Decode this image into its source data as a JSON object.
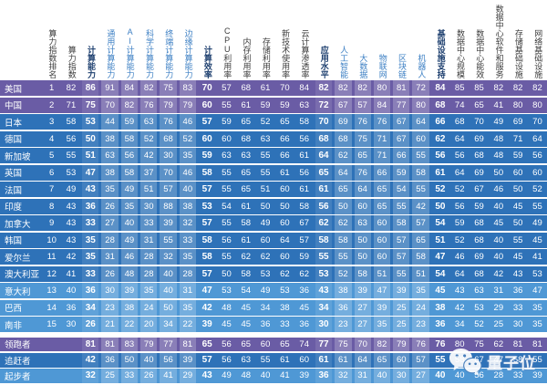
{
  "colors": {
    "leader_row": "#6a5ca5",
    "chaser_row": "#2e72b8",
    "starter_row": "#4f98d5",
    "header_lead": "#1c3e6e",
    "header_sub": "#3e80c4",
    "header_plain": "#3c3c3c",
    "value_text": "#ffffff"
  },
  "watermark": {
    "brand": "量子位",
    "icon": "wechat-icon"
  },
  "chart_data": {
    "type": "table",
    "title": "",
    "legend_position": "none",
    "columns": [
      {
        "label": "算力指数排名",
        "style": "plain",
        "stripe": "none"
      },
      {
        "label": "算力指数",
        "style": "plain",
        "stripe": "none"
      },
      {
        "label": "计算能力",
        "style": "lead",
        "stripe": "mid"
      },
      {
        "label": "通用计算能力",
        "style": "sub",
        "stripe": "light"
      },
      {
        "label": "AI计算能力",
        "style": "sub",
        "stripe": "light"
      },
      {
        "label": "科学计算能力",
        "style": "sub",
        "stripe": "light"
      },
      {
        "label": "终端计算能力",
        "style": "sub",
        "stripe": "light"
      },
      {
        "label": "边缘计算能力",
        "style": "sub",
        "stripe": "light"
      },
      {
        "label": "计算效率",
        "style": "lead",
        "stripe": "none"
      },
      {
        "label": "CPU利用率",
        "style": "plain",
        "stripe": "none"
      },
      {
        "label": "内存利用率",
        "style": "plain",
        "stripe": "none"
      },
      {
        "label": "存储利用率",
        "style": "plain",
        "stripe": "none"
      },
      {
        "label": "新技术使用率",
        "style": "plain",
        "stripe": "none"
      },
      {
        "label": "云计算渗透率",
        "style": "plain",
        "stripe": "none"
      },
      {
        "label": "应用水平",
        "style": "lead",
        "stripe": "mid"
      },
      {
        "label": "人工智能",
        "style": "sub",
        "stripe": "light"
      },
      {
        "label": "大数据",
        "style": "sub",
        "stripe": "light"
      },
      {
        "label": "物联网",
        "style": "sub",
        "stripe": "light"
      },
      {
        "label": "区块链",
        "style": "sub",
        "stripe": "light"
      },
      {
        "label": "机器人",
        "style": "sub",
        "stripe": "light"
      },
      {
        "label": "基础设施支持",
        "style": "lead",
        "stripe": "none"
      },
      {
        "label": "数据中心规模",
        "style": "plain",
        "stripe": "none"
      },
      {
        "label": "数据中心能效",
        "style": "plain",
        "stripe": "none"
      },
      {
        "label": "数据中心软件和服务",
        "style": "plain",
        "stripe": "none"
      },
      {
        "label": "存储基础设施",
        "style": "plain",
        "stripe": "none"
      },
      {
        "label": "网络基础设施",
        "style": "plain",
        "stripe": "none"
      }
    ],
    "rows": [
      {
        "name": "美国",
        "tier": "leader",
        "values": [
          1,
          82,
          86,
          91,
          84,
          82,
          75,
          83,
          70,
          57,
          68,
          61,
          70,
          84,
          82,
          82,
          82,
          80,
          81,
          72,
          84,
          85,
          85,
          82,
          82,
          82
        ]
      },
      {
        "name": "中国",
        "tier": "leader",
        "values": [
          2,
          71,
          75,
          70,
          82,
          76,
          79,
          79,
          60,
          55,
          61,
          59,
          59,
          63,
          72,
          67,
          57,
          84,
          77,
          80,
          68,
          74,
          65,
          41,
          80,
          80
        ]
      },
      {
        "name": "日本",
        "tier": "chaser",
        "values": [
          3,
          58,
          53,
          44,
          59,
          63,
          76,
          46,
          57,
          59,
          65,
          52,
          65,
          58,
          70,
          69,
          76,
          76,
          67,
          64,
          66,
          68,
          70,
          49,
          69,
          70
        ]
      },
      {
        "name": "德国",
        "tier": "chaser",
        "values": [
          4,
          56,
          50,
          38,
          58,
          52,
          68,
          52,
          60,
          60,
          68,
          63,
          66,
          56,
          68,
          68,
          75,
          71,
          67,
          60,
          62,
          64,
          69,
          48,
          71,
          64
        ]
      },
      {
        "name": "新加坡",
        "tier": "chaser",
        "values": [
          5,
          55,
          51,
          63,
          56,
          42,
          30,
          35,
          59,
          63,
          63,
          55,
          66,
          61,
          64,
          62,
          65,
          71,
          66,
          55,
          56,
          56,
          68,
          48,
          59,
          56
        ]
      },
      {
        "name": "英国",
        "tier": "chaser",
        "values": [
          6,
          53,
          47,
          38,
          58,
          37,
          70,
          46,
          58,
          55,
          65,
          55,
          61,
          56,
          65,
          64,
          76,
          66,
          59,
          58,
          61,
          64,
          69,
          50,
          60,
          60
        ]
      },
      {
        "name": "法国",
        "tier": "chaser",
        "values": [
          7,
          49,
          43,
          35,
          49,
          51,
          57,
          40,
          57,
          55,
          65,
          51,
          60,
          61,
          61,
          65,
          64,
          65,
          54,
          55,
          52,
          52,
          67,
          46,
          50,
          52
        ]
      },
      {
        "name": "印度",
        "tier": "chaser",
        "values": [
          8,
          43,
          36,
          26,
          35,
          30,
          88,
          38,
          53,
          54,
          61,
          50,
          50,
          58,
          56,
          50,
          60,
          65,
          55,
          42,
          50,
          56,
          59,
          40,
          45,
          55
        ]
      },
      {
        "name": "加拿大",
        "tier": "chaser",
        "values": [
          9,
          43,
          33,
          27,
          40,
          33,
          39,
          32,
          57,
          55,
          58,
          49,
          60,
          67,
          62,
          62,
          63,
          60,
          58,
          57,
          54,
          59,
          68,
          45,
          50,
          49
        ]
      },
      {
        "name": "韩国",
        "tier": "chaser",
        "values": [
          10,
          43,
          35,
          28,
          49,
          31,
          55,
          33,
          58,
          56,
          61,
          60,
          64,
          57,
          58,
          58,
          50,
          60,
          57,
          65,
          51,
          52,
          68,
          40,
          55,
          45
        ]
      },
      {
        "name": "爱尔兰",
        "tier": "chaser",
        "values": [
          11,
          42,
          35,
          31,
          46,
          28,
          32,
          35,
          58,
          55,
          62,
          62,
          60,
          59,
          55,
          55,
          50,
          60,
          57,
          58,
          47,
          46,
          69,
          40,
          45,
          41
        ]
      },
      {
        "name": "澳大利亚",
        "tier": "chaser",
        "values": [
          12,
          41,
          33,
          26,
          48,
          28,
          40,
          28,
          57,
          50,
          58,
          53,
          62,
          62,
          53,
          52,
          58,
          51,
          55,
          51,
          54,
          64,
          68,
          42,
          43,
          53
        ]
      },
      {
        "name": "意大利",
        "tier": "starter",
        "values": [
          13,
          40,
          36,
          30,
          39,
          35,
          40,
          31,
          47,
          53,
          54,
          49,
          53,
          36,
          43,
          38,
          39,
          47,
          39,
          35,
          45,
          43,
          63,
          31,
          36,
          47
        ]
      },
      {
        "name": "巴西",
        "tier": "starter",
        "values": [
          14,
          36,
          34,
          23,
          38,
          24,
          50,
          35,
          42,
          48,
          45,
          34,
          38,
          45,
          34,
          36,
          27,
          39,
          25,
          24,
          38,
          42,
          53,
          29,
          33,
          35
        ]
      },
      {
        "name": "南非",
        "tier": "starter",
        "values": [
          15,
          30,
          26,
          21,
          22,
          20,
          34,
          22,
          39,
          45,
          45,
          36,
          33,
          36,
          30,
          23,
          27,
          35,
          25,
          23,
          36,
          34,
          52,
          25,
          30,
          35
        ]
      }
    ],
    "summary_rows": [
      {
        "name": "领跑者",
        "tier": "leader",
        "values": [
          81,
          81,
          83,
          79,
          77,
          81,
          65,
          56,
          65,
          60,
          65,
          74,
          77,
          75,
          70,
          82,
          79,
          76,
          76,
          80,
          75,
          62,
          81,
          81
        ]
      },
      {
        "name": "追赶者",
        "tier": "chaser",
        "values": [
          42,
          36,
          50,
          40,
          56,
          39,
          57,
          56,
          63,
          55,
          61,
          60,
          61,
          61,
          64,
          65,
          60,
          57,
          55,
          58,
          67,
          47,
          58,
          55
        ]
      },
      {
        "name": "起步者",
        "tier": "starter",
        "values": [
          32,
          25,
          33,
          26,
          41,
          29,
          43,
          49,
          48,
          40,
          41,
          39,
          36,
          32,
          31,
          40,
          30,
          27,
          40,
          40,
          56,
          28,
          33,
          39
        ]
      }
    ]
  }
}
